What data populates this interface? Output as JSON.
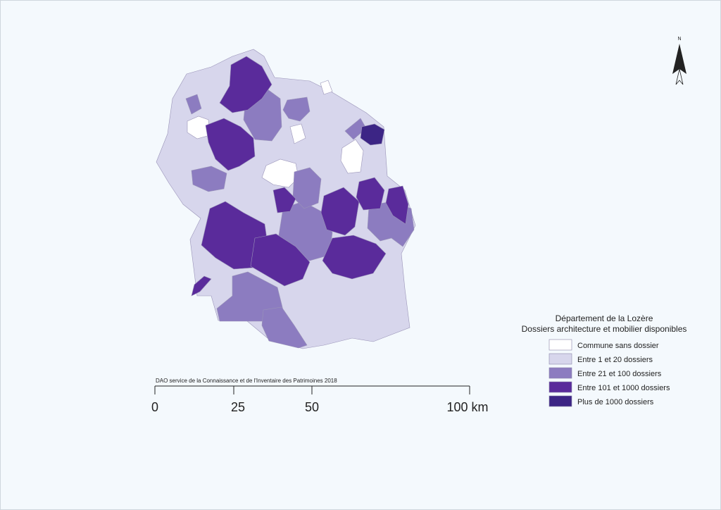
{
  "credit": "DAO service de la Connaissance et de l'Inventaire des Patrimoines 2018",
  "scale": {
    "labels": [
      "0",
      "25",
      "50",
      "100 km"
    ]
  },
  "north": "N",
  "legend": {
    "title": [
      "Département de la Lozère",
      "Dossiers architecture et mobilier disponibles"
    ],
    "items": [
      {
        "label": "Commune sans dossier",
        "color": "#ffffff"
      },
      {
        "label": "Entre 1 et 20 dossiers",
        "color": "#d7d6ec"
      },
      {
        "label": "Entre 21 et 100 dossiers",
        "color": "#8c7cc0"
      },
      {
        "label": "Entre 101 et 1000 dossiers",
        "color": "#5a2b9b"
      },
      {
        "label": "Plus de 1000 dossiers",
        "color": "#3c2585"
      }
    ]
  }
}
